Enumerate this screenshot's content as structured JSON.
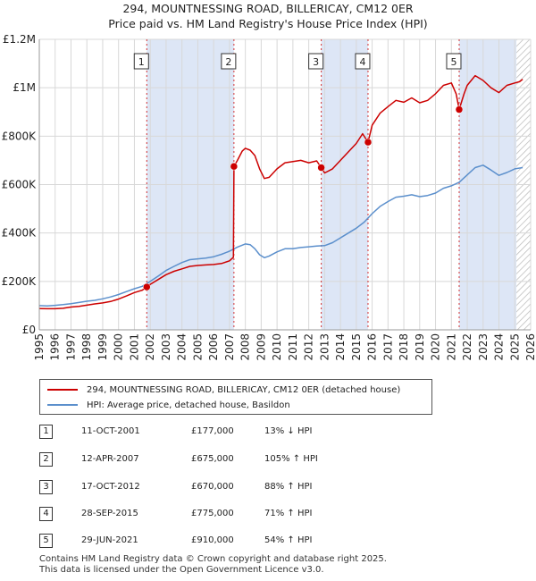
{
  "header": {
    "title": "294, MOUNTNESSING ROAD, BILLERICAY, CM12 0ER",
    "subtitle": "Price paid vs. HM Land Registry's House Price Index (HPI)"
  },
  "colors": {
    "red": "#cc0000",
    "blue": "#5b8fcc",
    "shade": "#dde6f6",
    "grid": "#d8d8d8"
  },
  "legend": {
    "red_label": "294, MOUNTNESSING ROAD, BILLERICAY, CM12 0ER (detached house)",
    "blue_label": "HPI: Average price, detached house, Basildon"
  },
  "table": [
    {
      "n": "1",
      "date": "11-OCT-2001",
      "price": "£177,000",
      "hpi": "13% ↓ HPI"
    },
    {
      "n": "2",
      "date": "12-APR-2007",
      "price": "£675,000",
      "hpi": "105% ↑ HPI"
    },
    {
      "n": "3",
      "date": "17-OCT-2012",
      "price": "£670,000",
      "hpi": "88% ↑ HPI"
    },
    {
      "n": "4",
      "date": "28-SEP-2015",
      "price": "£775,000",
      "hpi": "71% ↑ HPI"
    },
    {
      "n": "5",
      "date": "29-JUN-2021",
      "price": "£910,000",
      "hpi": "54% ↑ HPI"
    }
  ],
  "footer": {
    "line1": "Contains HM Land Registry data © Crown copyright and database right 2025.",
    "line2": "This data is licensed under the Open Government Licence v3.0."
  },
  "chart_data": {
    "type": "line",
    "title": "294, MOUNTNESSING ROAD, BILLERICAY, CM12 0ER",
    "subtitle": "Price paid vs. HM Land Registry's House Price Index (HPI)",
    "xlim": [
      1995,
      2026
    ],
    "ylim": [
      0,
      1200000
    ],
    "x_ticks": [
      1995,
      1996,
      1997,
      1998,
      1999,
      2000,
      2001,
      2002,
      2003,
      2004,
      2005,
      2006,
      2007,
      2008,
      2009,
      2010,
      2011,
      2012,
      2013,
      2014,
      2015,
      2016,
      2017,
      2018,
      2019,
      2020,
      2021,
      2022,
      2023,
      2024,
      2025,
      2026
    ],
    "y_ticks": [
      {
        "v": 0,
        "label": "£0"
      },
      {
        "v": 200000,
        "label": "£200K"
      },
      {
        "v": 400000,
        "label": "£400K"
      },
      {
        "v": 600000,
        "label": "£600K"
      },
      {
        "v": 800000,
        "label": "£800K"
      },
      {
        "v": 1000000,
        "label": "£1M"
      },
      {
        "v": 1200000,
        "label": "£1.2M"
      }
    ],
    "grid": true,
    "future_hatch_from": 2025.1,
    "sales": [
      {
        "n": "1",
        "x": 2001.78,
        "y": 177000
      },
      {
        "n": "2",
        "x": 2007.28,
        "y": 675000
      },
      {
        "n": "3",
        "x": 2012.79,
        "y": 670000
      },
      {
        "n": "4",
        "x": 2015.74,
        "y": 775000
      },
      {
        "n": "5",
        "x": 2021.49,
        "y": 910000
      }
    ],
    "shaded_ranges": [
      [
        2001.78,
        2007.28
      ],
      [
        2012.79,
        2015.74
      ],
      [
        2021.49,
        2025.1
      ]
    ],
    "series": [
      {
        "name": "294, MOUNTNESSING ROAD, BILLERICAY, CM12 0ER (detached house)",
        "color": "#cc0000",
        "points": [
          [
            1995,
            88000
          ],
          [
            1995.5,
            87000
          ],
          [
            1996,
            87000
          ],
          [
            1996.5,
            89000
          ],
          [
            1997,
            94000
          ],
          [
            1997.5,
            97000
          ],
          [
            1998,
            102000
          ],
          [
            1998.5,
            107000
          ],
          [
            1999,
            111000
          ],
          [
            1999.5,
            117000
          ],
          [
            2000,
            127000
          ],
          [
            2000.5,
            140000
          ],
          [
            2001,
            154000
          ],
          [
            2001.5,
            164000
          ],
          [
            2001.78,
            177000
          ],
          [
            2002,
            188000
          ],
          [
            2002.5,
            208000
          ],
          [
            2003,
            228000
          ],
          [
            2003.5,
            242000
          ],
          [
            2004,
            252000
          ],
          [
            2004.5,
            262000
          ],
          [
            2005,
            266000
          ],
          [
            2005.5,
            268000
          ],
          [
            2006,
            270000
          ],
          [
            2006.5,
            274000
          ],
          [
            2007,
            285000
          ],
          [
            2007.25,
            300000
          ],
          [
            2007.28,
            675000
          ],
          [
            2007.5,
            700000
          ],
          [
            2007.8,
            738000
          ],
          [
            2008,
            750000
          ],
          [
            2008.3,
            742000
          ],
          [
            2008.6,
            720000
          ],
          [
            2008.9,
            665000
          ],
          [
            2009.2,
            625000
          ],
          [
            2009.5,
            630000
          ],
          [
            2010,
            665000
          ],
          [
            2010.5,
            690000
          ],
          [
            2011,
            695000
          ],
          [
            2011.5,
            700000
          ],
          [
            2012,
            690000
          ],
          [
            2012.5,
            698000
          ],
          [
            2012.79,
            670000
          ],
          [
            2013,
            648000
          ],
          [
            2013.5,
            665000
          ],
          [
            2014,
            700000
          ],
          [
            2014.5,
            735000
          ],
          [
            2015,
            770000
          ],
          [
            2015.4,
            810000
          ],
          [
            2015.74,
            775000
          ],
          [
            2016,
            845000
          ],
          [
            2016.5,
            895000
          ],
          [
            2017,
            922000
          ],
          [
            2017.5,
            948000
          ],
          [
            2018,
            940000
          ],
          [
            2018.5,
            958000
          ],
          [
            2019,
            938000
          ],
          [
            2019.5,
            948000
          ],
          [
            2020,
            975000
          ],
          [
            2020.5,
            1010000
          ],
          [
            2021,
            1020000
          ],
          [
            2021.3,
            975000
          ],
          [
            2021.49,
            910000
          ],
          [
            2021.8,
            975000
          ],
          [
            2022,
            1010000
          ],
          [
            2022.5,
            1050000
          ],
          [
            2023,
            1030000
          ],
          [
            2023.5,
            1000000
          ],
          [
            2024,
            980000
          ],
          [
            2024.5,
            1010000
          ],
          [
            2025,
            1020000
          ],
          [
            2025.3,
            1025000
          ],
          [
            2025.5,
            1035000
          ]
        ]
      },
      {
        "name": "HPI: Average price, detached house, Basildon",
        "color": "#5b8fcc",
        "points": [
          [
            1995,
            100000
          ],
          [
            1995.5,
            99000
          ],
          [
            1996,
            101000
          ],
          [
            1996.5,
            104000
          ],
          [
            1997,
            108000
          ],
          [
            1997.5,
            113000
          ],
          [
            1998,
            118000
          ],
          [
            1998.5,
            122000
          ],
          [
            1999,
            128000
          ],
          [
            1999.5,
            136000
          ],
          [
            2000,
            146000
          ],
          [
            2000.5,
            158000
          ],
          [
            2001,
            170000
          ],
          [
            2001.5,
            180000
          ],
          [
            2002,
            200000
          ],
          [
            2002.5,
            222000
          ],
          [
            2003,
            245000
          ],
          [
            2003.5,
            262000
          ],
          [
            2004,
            278000
          ],
          [
            2004.5,
            290000
          ],
          [
            2005,
            293000
          ],
          [
            2005.5,
            296000
          ],
          [
            2006,
            302000
          ],
          [
            2006.5,
            312000
          ],
          [
            2007,
            325000
          ],
          [
            2007.5,
            342000
          ],
          [
            2008,
            355000
          ],
          [
            2008.3,
            352000
          ],
          [
            2008.6,
            335000
          ],
          [
            2008.9,
            310000
          ],
          [
            2009.2,
            298000
          ],
          [
            2009.5,
            305000
          ],
          [
            2010,
            322000
          ],
          [
            2010.5,
            335000
          ],
          [
            2011,
            335000
          ],
          [
            2011.5,
            340000
          ],
          [
            2012,
            343000
          ],
          [
            2012.5,
            346000
          ],
          [
            2013,
            348000
          ],
          [
            2013.5,
            360000
          ],
          [
            2014,
            380000
          ],
          [
            2014.5,
            400000
          ],
          [
            2015,
            420000
          ],
          [
            2015.5,
            445000
          ],
          [
            2016,
            480000
          ],
          [
            2016.5,
            510000
          ],
          [
            2017,
            530000
          ],
          [
            2017.5,
            548000
          ],
          [
            2018,
            552000
          ],
          [
            2018.5,
            558000
          ],
          [
            2019,
            550000
          ],
          [
            2019.5,
            555000
          ],
          [
            2020,
            565000
          ],
          [
            2020.5,
            585000
          ],
          [
            2021,
            595000
          ],
          [
            2021.5,
            610000
          ],
          [
            2022,
            640000
          ],
          [
            2022.5,
            670000
          ],
          [
            2023,
            680000
          ],
          [
            2023.5,
            660000
          ],
          [
            2024,
            638000
          ],
          [
            2024.5,
            650000
          ],
          [
            2025,
            665000
          ],
          [
            2025.5,
            670000
          ]
        ]
      }
    ]
  }
}
